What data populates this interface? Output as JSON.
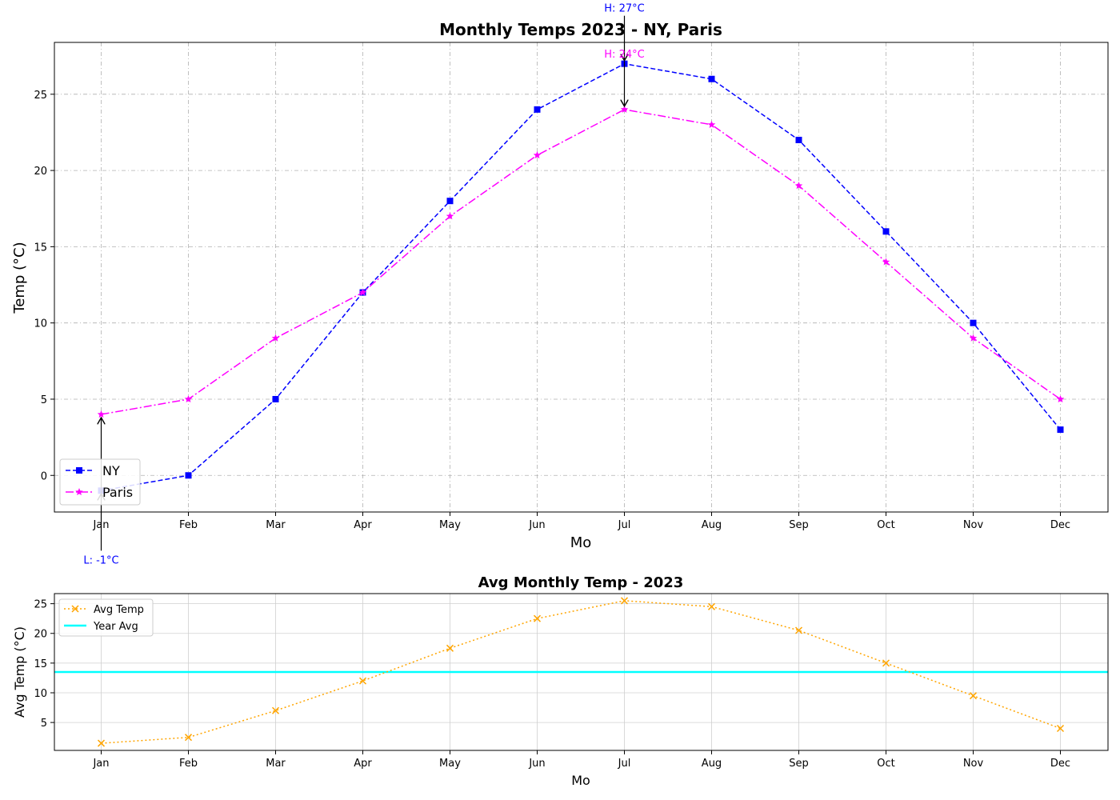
{
  "chart_data": [
    {
      "type": "line",
      "title": "Monthly Temps 2023 - NY, Paris",
      "xlabel": "Mo",
      "ylabel": "Temp (°C)",
      "categories": [
        "Jan",
        "Feb",
        "Mar",
        "Apr",
        "May",
        "Jun",
        "Jul",
        "Aug",
        "Sep",
        "Oct",
        "Nov",
        "Dec"
      ],
      "series": [
        {
          "name": "NY",
          "values": [
            -1,
            0,
            5,
            12,
            18,
            24,
            27,
            26,
            22,
            16,
            10,
            3
          ],
          "color": "#0000ff",
          "marker": "square",
          "line": "dashed"
        },
        {
          "name": "Paris",
          "values": [
            4,
            5,
            9,
            12,
            17,
            21,
            24,
            23,
            19,
            14,
            9,
            5
          ],
          "color": "#ff00ff",
          "marker": "star",
          "line": "dashdot"
        }
      ],
      "ylim": [
        -2.4,
        28.4
      ],
      "yticks": [
        0,
        5,
        10,
        15,
        20,
        25
      ],
      "grid": true,
      "legend": "lower-left",
      "annotations": [
        {
          "text": "H: 27°C",
          "category": "Jul",
          "value": 27,
          "color": "#0000ff"
        },
        {
          "text": "L: -1°C",
          "category": "Jan",
          "value": -1,
          "color": "#0000ff"
        },
        {
          "text": "H: 24°C",
          "category": "Jul",
          "value": 24,
          "color": "#ff00ff"
        },
        {
          "text": "",
          "category": "Jan",
          "value": 4,
          "color": "#ff00ff"
        }
      ]
    },
    {
      "type": "line",
      "title": "Avg Monthly Temp - 2023",
      "xlabel": "Mo",
      "ylabel": "Avg Temp (°C)",
      "categories": [
        "Jan",
        "Feb",
        "Mar",
        "Apr",
        "May",
        "Jun",
        "Jul",
        "Aug",
        "Sep",
        "Oct",
        "Nov",
        "Dec"
      ],
      "series": [
        {
          "name": "Avg Temp",
          "values": [
            1.5,
            2.5,
            7,
            12,
            17.5,
            22.5,
            25.5,
            24.5,
            20.5,
            15,
            9.5,
            4
          ],
          "color": "#ffa500",
          "marker": "x",
          "line": "dotted"
        }
      ],
      "reference_lines": [
        {
          "name": "Year Avg",
          "value": 13.5,
          "color": "#00ffff"
        }
      ],
      "ylim": [
        0.3,
        26.7
      ],
      "yticks": [
        5,
        10,
        15,
        20,
        25
      ],
      "grid": true,
      "legend": "upper-left"
    }
  ]
}
